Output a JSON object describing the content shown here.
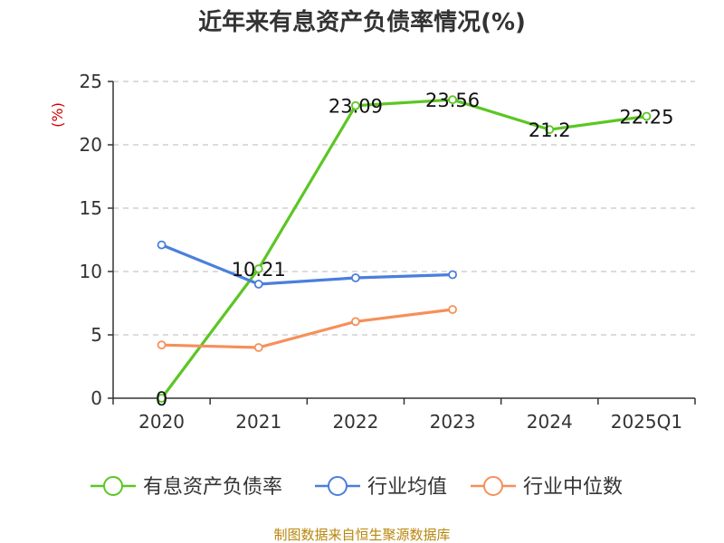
{
  "chart_data": {
    "type": "line",
    "title": "近年来有息资产负债率情况(%)",
    "ylabel": "(%)",
    "categories": [
      "2020",
      "2021",
      "2022",
      "2023",
      "2024",
      "2025Q1"
    ],
    "ylim": [
      0,
      25
    ],
    "yticks": [
      0,
      5,
      10,
      15,
      20,
      25
    ],
    "grid": true,
    "legend_position": "bottom",
    "series": [
      {
        "name": "有息资产负债率",
        "color": "#5cc624",
        "values": [
          0,
          10.21,
          23.09,
          23.56,
          21.2,
          22.25
        ],
        "labels": [
          "0",
          "10.21",
          "23.09",
          "23.56",
          "21.2",
          "22.25"
        ]
      },
      {
        "name": "行业均值",
        "color": "#4a7fdc",
        "values": [
          12.1,
          9.0,
          9.5,
          9.75,
          null,
          null
        ]
      },
      {
        "name": "行业中位数",
        "color": "#f5905a",
        "values": [
          4.2,
          4.0,
          6.05,
          7.0,
          null,
          null
        ]
      }
    ]
  },
  "source": "制图数据来自恒生聚源数据库"
}
